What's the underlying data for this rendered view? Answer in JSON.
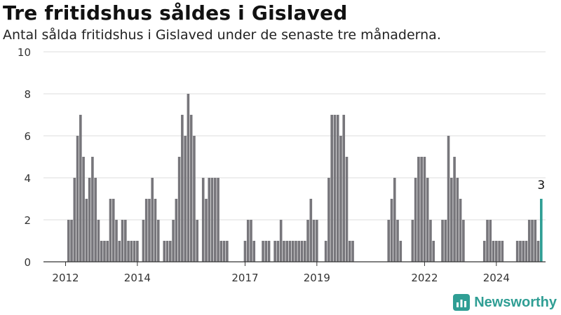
{
  "header": {
    "title": "Tre fritidshus såldes i Gislaved",
    "subtitle": "Antal sålda fritidshus i Gislaved under de senaste tre månaderna."
  },
  "brand": {
    "name": "Newsworthy",
    "icon": "newsworthy-logo-icon",
    "color": "#2f9e94"
  },
  "chart_data": {
    "type": "bar",
    "ylim": [
      0,
      10
    ],
    "yticks": [
      0,
      2,
      4,
      6,
      8,
      10
    ],
    "xtick_labels": [
      "2012",
      "2014",
      "2017",
      "2019",
      "2022",
      "2024"
    ],
    "xtick_years": [
      2012,
      2014,
      2017,
      2019,
      2022,
      2024
    ],
    "x_start": "2012-01",
    "grid": true,
    "bar_color": "#77767b",
    "highlight_color": "#2f9e94",
    "highlight_label": "3",
    "values": [
      0,
      2,
      2,
      4,
      6,
      7,
      5,
      3,
      4,
      5,
      4,
      2,
      1,
      1,
      1,
      3,
      3,
      2,
      1,
      2,
      2,
      1,
      1,
      1,
      1,
      0,
      2,
      3,
      3,
      4,
      3,
      2,
      0,
      1,
      1,
      1,
      2,
      3,
      5,
      7,
      6,
      8,
      7,
      6,
      2,
      0,
      4,
      3,
      4,
      4,
      4,
      4,
      1,
      1,
      1,
      0,
      0,
      0,
      0,
      0,
      1,
      2,
      2,
      1,
      0,
      0,
      1,
      1,
      1,
      0,
      1,
      1,
      2,
      1,
      1,
      1,
      1,
      1,
      1,
      1,
      1,
      2,
      3,
      2,
      2,
      0,
      0,
      1,
      4,
      7,
      7,
      7,
      6,
      7,
      5,
      1,
      1,
      0,
      0,
      0,
      0,
      0,
      0,
      0,
      0,
      0,
      0,
      0,
      2,
      3,
      4,
      2,
      1,
      0,
      0,
      0,
      2,
      4,
      5,
      5,
      5,
      4,
      2,
      1,
      0,
      0,
      2,
      2,
      6,
      4,
      5,
      4,
      3,
      2,
      0,
      0,
      0,
      0,
      0,
      0,
      1,
      2,
      2,
      1,
      1,
      1,
      1,
      0,
      0,
      0,
      0,
      1,
      1,
      1,
      1,
      2,
      2,
      2,
      1,
      3
    ]
  }
}
